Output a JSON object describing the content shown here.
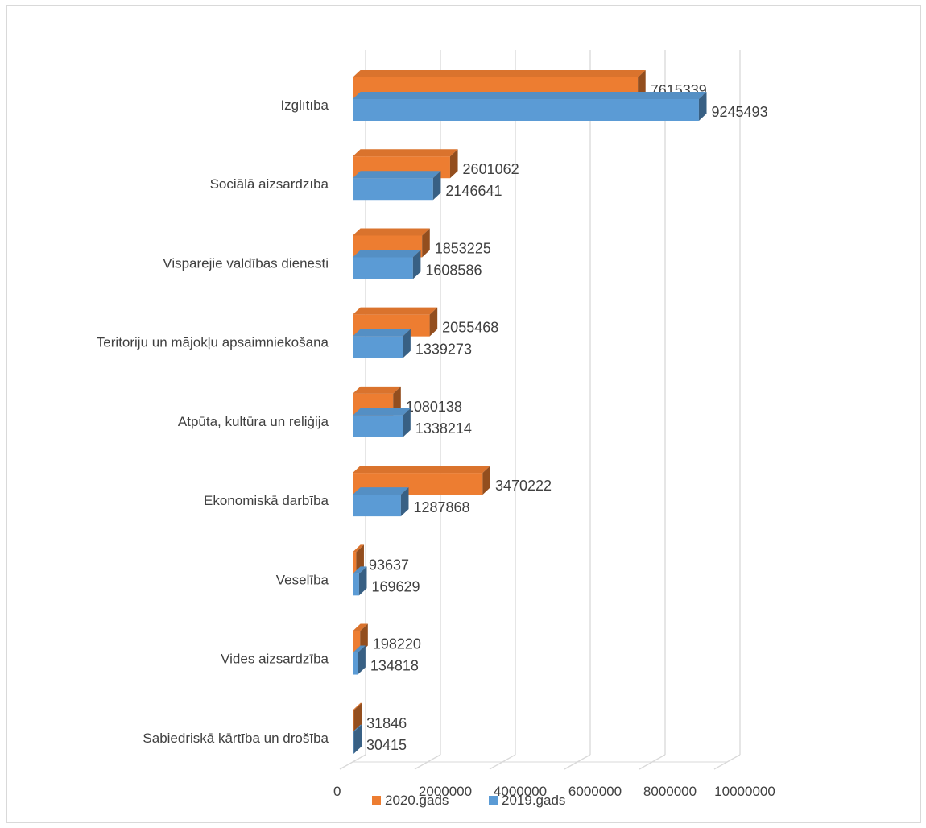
{
  "chart_data": {
    "type": "bar",
    "orientation": "horizontal",
    "style": "3d",
    "title": "",
    "xlabel": "",
    "ylabel": "",
    "categories": [
      "Izglītība",
      "Sociālā aizsardzība",
      "Vispārējie valdības dienesti",
      "Teritoriju un mājokļu apsaimniekošana",
      "Atpūta, kultūra un reliģija",
      "Ekonomiskā darbība",
      "Veselība",
      "Vides aizsardzība",
      "Sabiedriskā kārtība un drošība"
    ],
    "series": [
      {
        "name": "2020.gads",
        "color": "#ED7D31",
        "values": [
          7615339,
          2601062,
          1853225,
          2055468,
          1080138,
          3470222,
          93637,
          198220,
          31846
        ]
      },
      {
        "name": "2019.gads",
        "color": "#5B9BD5",
        "values": [
          9245493,
          2146641,
          1608586,
          1339273,
          1338214,
          1287868,
          169629,
          134818,
          30415
        ]
      }
    ],
    "xlim": [
      0,
      10000000
    ],
    "tick_labels": [
      "0",
      "2000000",
      "4000000",
      "6000000",
      "8000000",
      "10000000"
    ],
    "grid": true,
    "legend": "bottom"
  }
}
